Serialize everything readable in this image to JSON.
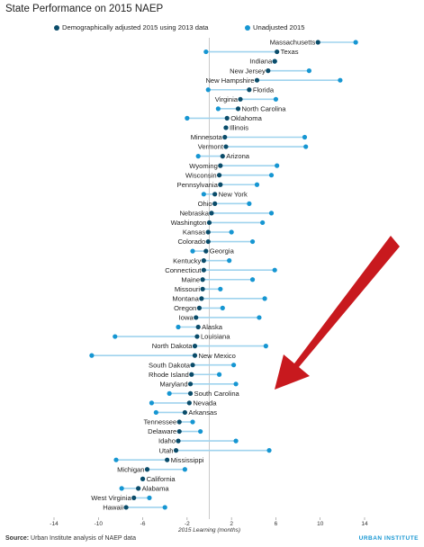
{
  "chart_data": {
    "type": "scatter",
    "title": "State Performance on 2015 NAEP",
    "xlabel": "2015 Learning (months)",
    "xlim": [
      -14,
      14
    ],
    "xticks": [
      -14,
      -10,
      -6,
      -2,
      2,
      6,
      10,
      14
    ],
    "grid": false,
    "legend_position": "top",
    "series": [
      {
        "name": "Demographically adjusted 2015 using 2013 data",
        "color": "#0a4c6a"
      },
      {
        "name": "Unadjusted 2015",
        "color": "#1696d2"
      }
    ],
    "points": [
      {
        "state": "Massachusetts",
        "adjusted": 9.8,
        "unadjusted": 13.2
      },
      {
        "state": "Texas",
        "adjusted": 6.1,
        "unadjusted": -0.3
      },
      {
        "state": "Indiana",
        "adjusted": 5.9,
        "unadjusted": 5.9
      },
      {
        "state": "New Jersey",
        "adjusted": 5.3,
        "unadjusted": 9.0
      },
      {
        "state": "New Hampshire",
        "adjusted": 4.3,
        "unadjusted": 11.8
      },
      {
        "state": "Florida",
        "adjusted": 3.6,
        "unadjusted": -0.1
      },
      {
        "state": "Virginia",
        "adjusted": 2.8,
        "unadjusted": 6.0
      },
      {
        "state": "North Carolina",
        "adjusted": 2.6,
        "unadjusted": 0.8
      },
      {
        "state": "Oklahoma",
        "adjusted": 1.6,
        "unadjusted": -2.0
      },
      {
        "state": "Illinois",
        "adjusted": 1.5,
        "unadjusted": 1.5
      },
      {
        "state": "Minnesota",
        "adjusted": 1.4,
        "unadjusted": 8.6
      },
      {
        "state": "Vermont",
        "adjusted": 1.5,
        "unadjusted": 8.7
      },
      {
        "state": "Arizona",
        "adjusted": 1.2,
        "unadjusted": -1.0
      },
      {
        "state": "Wyoming",
        "adjusted": 1.0,
        "unadjusted": 6.1
      },
      {
        "state": "Wisconsin",
        "adjusted": 0.9,
        "unadjusted": 5.6
      },
      {
        "state": "Pennsylvania",
        "adjusted": 1.0,
        "unadjusted": 4.3
      },
      {
        "state": "New York",
        "adjusted": 0.5,
        "unadjusted": -0.5
      },
      {
        "state": "Ohio",
        "adjusted": 0.5,
        "unadjusted": 3.6
      },
      {
        "state": "Nebraska",
        "adjusted": 0.2,
        "unadjusted": 5.6
      },
      {
        "state": "Washington",
        "adjusted": 0.0,
        "unadjusted": 4.8
      },
      {
        "state": "Kansas",
        "adjusted": -0.1,
        "unadjusted": 2.0
      },
      {
        "state": "Colorado",
        "adjusted": -0.1,
        "unadjusted": 3.9
      },
      {
        "state": "Georgia",
        "adjusted": -0.3,
        "unadjusted": -1.5
      },
      {
        "state": "Kentucky",
        "adjusted": -0.5,
        "unadjusted": 1.8
      },
      {
        "state": "Connecticut",
        "adjusted": -0.5,
        "unadjusted": 5.9
      },
      {
        "state": "Maine",
        "adjusted": -0.6,
        "unadjusted": 3.9
      },
      {
        "state": "Missouri",
        "adjusted": -0.6,
        "unadjusted": 1.0
      },
      {
        "state": "Montana",
        "adjusted": -0.7,
        "unadjusted": 5.0
      },
      {
        "state": "Oregon",
        "adjusted": -0.9,
        "unadjusted": 1.2
      },
      {
        "state": "Iowa",
        "adjusted": -1.2,
        "unadjusted": 4.5
      },
      {
        "state": "Alaska",
        "adjusted": -1.0,
        "unadjusted": -2.8
      },
      {
        "state": "Louisiana",
        "adjusted": -1.1,
        "unadjusted": -8.5
      },
      {
        "state": "North Dakota",
        "adjusted": -1.3,
        "unadjusted": 5.1
      },
      {
        "state": "New Mexico",
        "adjusted": -1.3,
        "unadjusted": -10.6
      },
      {
        "state": "South Dakota",
        "adjusted": -1.5,
        "unadjusted": 2.2
      },
      {
        "state": "Rhode Island",
        "adjusted": -1.6,
        "unadjusted": 0.9
      },
      {
        "state": "Maryland",
        "adjusted": -1.7,
        "unadjusted": 2.4
      },
      {
        "state": "South Carolina",
        "adjusted": -1.7,
        "unadjusted": -3.6
      },
      {
        "state": "Nevada",
        "adjusted": -1.8,
        "unadjusted": -5.2
      },
      {
        "state": "Arkansas",
        "adjusted": -2.2,
        "unadjusted": -4.8
      },
      {
        "state": "Tennessee",
        "adjusted": -2.7,
        "unadjusted": -1.5
      },
      {
        "state": "Delaware",
        "adjusted": -2.7,
        "unadjusted": -0.8
      },
      {
        "state": "Idaho",
        "adjusted": -2.8,
        "unadjusted": 2.4
      },
      {
        "state": "Utah",
        "adjusted": -3.0,
        "unadjusted": 5.4
      },
      {
        "state": "Mississippi",
        "adjusted": -3.8,
        "unadjusted": -8.4
      },
      {
        "state": "Michigan",
        "adjusted": -5.6,
        "unadjusted": -2.2
      },
      {
        "state": "California",
        "adjusted": -6.0,
        "unadjusted": -6.0
      },
      {
        "state": "Alabama",
        "adjusted": -6.4,
        "unadjusted": -7.9
      },
      {
        "state": "West Virginia",
        "adjusted": -6.8,
        "unadjusted": -5.4
      },
      {
        "state": "Hawaii",
        "adjusted": -7.5,
        "unadjusted": -4.0
      }
    ]
  },
  "source": {
    "label": "Source:",
    "text": "Urban Institute analysis of NAEP data"
  },
  "brand": "URBAN INSTITUTE",
  "annotation": {
    "shape": "arrow",
    "color": "#c8191e"
  }
}
